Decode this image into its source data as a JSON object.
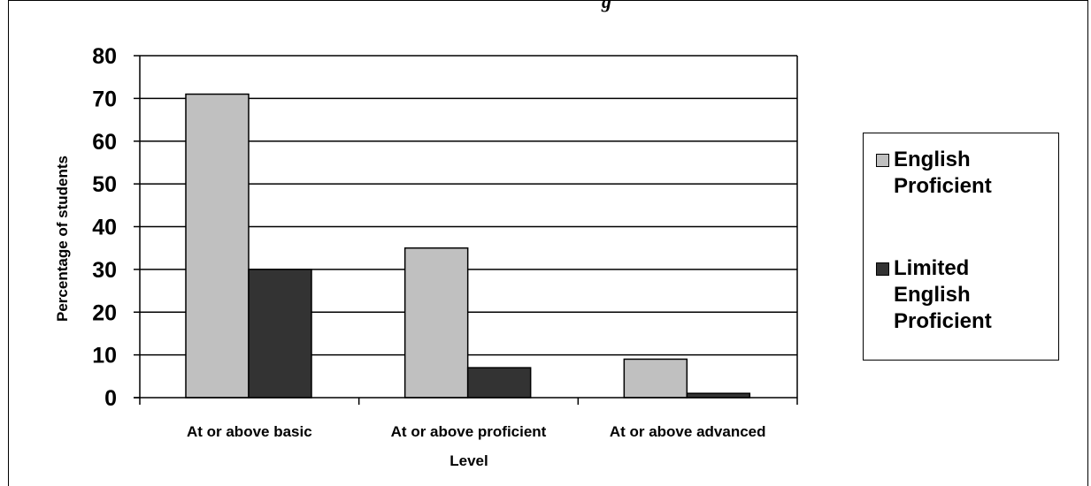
{
  "title_fragment": "g",
  "chart_data": {
    "type": "bar",
    "categories": [
      "At or above basic",
      "At or above proficient",
      "At or above advanced"
    ],
    "series": [
      {
        "name": "English Proficient",
        "values": [
          71,
          35,
          9
        ],
        "color": "#c0c0c0"
      },
      {
        "name": "Limited English Proficient",
        "values": [
          30,
          7,
          1
        ],
        "color": "#333333"
      }
    ],
    "xlabel": "Level",
    "ylabel": "Percentage of students",
    "ylim": [
      0,
      80
    ],
    "yticks": [
      0,
      10,
      20,
      30,
      40,
      50,
      60,
      70,
      80
    ],
    "grid": true,
    "legend_position": "right"
  }
}
